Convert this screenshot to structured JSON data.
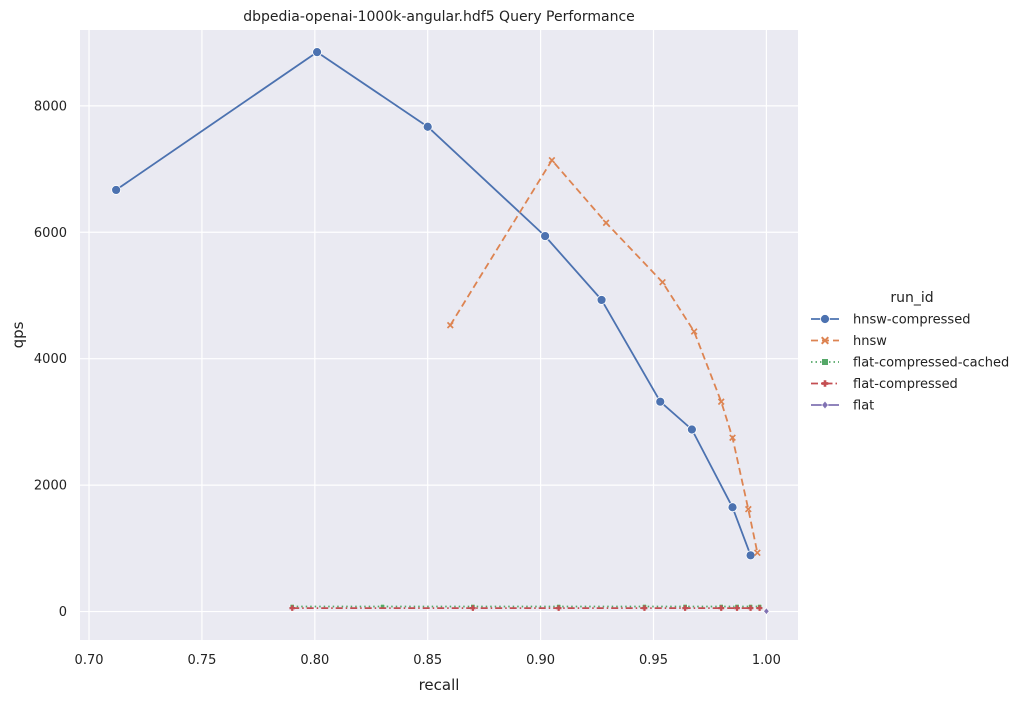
{
  "chart_data": {
    "type": "line",
    "title": "dbpedia-openai-1000k-angular.hdf5 Query Performance",
    "xlabel": "recall",
    "ylabel": "qps",
    "xlim": [
      0.696,
      1.014
    ],
    "ylim": [
      -450,
      9200
    ],
    "xticks": [
      "0.70",
      "0.75",
      "0.80",
      "0.85",
      "0.90",
      "0.95",
      "1.00"
    ],
    "yticks": [
      "0",
      "2000",
      "4000",
      "6000",
      "8000"
    ],
    "grid": true,
    "legend_title": "run_id",
    "legend_position": "right",
    "series": [
      {
        "name": "hnsw-compressed",
        "color": "#4c72b0",
        "dash": "solid",
        "marker": "circle",
        "x": [
          0.712,
          0.801,
          0.85,
          0.902,
          0.927,
          0.953,
          0.967,
          0.985,
          0.993
        ],
        "y": [
          6670,
          8850,
          7670,
          5940,
          4930,
          3320,
          2880,
          1650,
          890
        ]
      },
      {
        "name": "hnsw",
        "color": "#dd8452",
        "dash": "dashed",
        "marker": "x",
        "x": [
          0.86,
          0.905,
          0.929,
          0.954,
          0.968,
          0.98,
          0.985,
          0.992,
          0.996
        ],
        "y": [
          4530,
          7140,
          6150,
          5210,
          4430,
          3320,
          2750,
          1620,
          930
        ]
      },
      {
        "name": "flat-compressed-cached",
        "color": "#55a868",
        "dash": "dotted",
        "marker": "square",
        "x": [
          0.79,
          0.83,
          0.87,
          0.908,
          0.946,
          0.964,
          0.98,
          0.987,
          0.993,
          0.997
        ],
        "y": [
          80,
          80,
          80,
          80,
          80,
          80,
          80,
          80,
          80,
          80
        ]
      },
      {
        "name": "flat-compressed",
        "color": "#c44e52",
        "dash": "dashdot",
        "marker": "plus",
        "x": [
          0.79,
          0.87,
          0.908,
          0.946,
          0.964,
          0.98,
          0.987,
          0.993,
          0.997
        ],
        "y": [
          55,
          55,
          55,
          55,
          55,
          55,
          55,
          55,
          55
        ]
      },
      {
        "name": "flat",
        "color": "#8172b3",
        "dash": "solid",
        "marker": "diamond",
        "x": [
          1.0
        ],
        "y": [
          5
        ]
      }
    ]
  }
}
